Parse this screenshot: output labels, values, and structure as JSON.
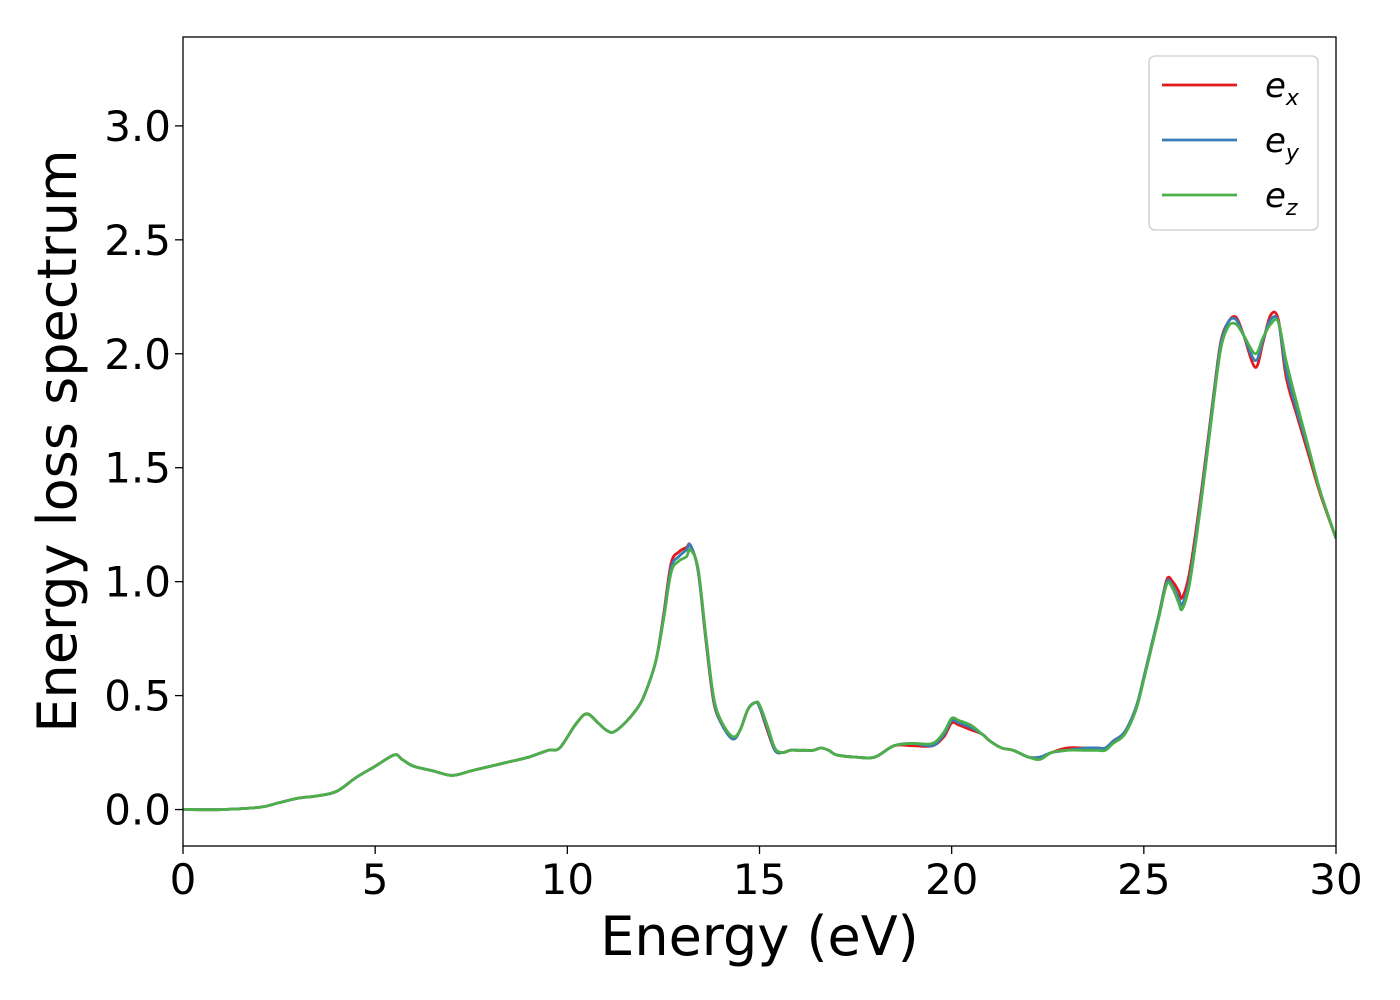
{
  "chart_data": {
    "type": "line",
    "xlabel": "Energy (eV)",
    "ylabel": "Energy loss spectrum",
    "xlim": [
      0,
      30
    ],
    "ylim": [
      -0.16,
      3.39
    ],
    "xticks": [
      0,
      5,
      10,
      15,
      20,
      25,
      30
    ],
    "xtick_labels": [
      "0",
      "5",
      "10",
      "15",
      "20",
      "25",
      "30"
    ],
    "yticks": [
      0.0,
      0.5,
      1.0,
      1.5,
      2.0,
      2.5,
      3.0
    ],
    "ytick_labels": [
      "0.0",
      "0.5",
      "1.0",
      "1.5",
      "2.0",
      "2.5",
      "3.0"
    ],
    "grid": false,
    "legend_position": "top-right",
    "x": [
      0,
      1,
      2,
      2.5,
      3,
      3.5,
      4,
      4.5,
      5,
      5.5,
      5.7,
      6,
      6.5,
      7,
      7.5,
      8,
      8.5,
      9,
      9.5,
      9.8,
      10.2,
      10.5,
      10.8,
      11,
      11.2,
      11.5,
      11.8,
      12,
      12.3,
      12.5,
      12.7,
      12.9,
      13.1,
      13.2,
      13.4,
      13.6,
      13.8,
      14,
      14.3,
      14.5,
      14.7,
      14.9,
      15,
      15.2,
      15.4,
      15.6,
      15.8,
      16,
      16.2,
      16.4,
      16.6,
      16.8,
      17,
      17.5,
      18,
      18.5,
      19,
      19.5,
      19.8,
      20,
      20.2,
      20.5,
      20.8,
      21,
      21.3,
      21.6,
      22,
      22.3,
      22.6,
      23,
      23.5,
      23.8,
      24,
      24.2,
      24.5,
      24.8,
      25,
      25.2,
      25.4,
      25.6,
      25.75,
      25.9,
      26,
      26.2,
      26.5,
      26.8,
      27,
      27.2,
      27.4,
      27.6,
      27.9,
      28.1,
      28.3,
      28.5,
      28.7,
      29,
      29.3,
      29.6,
      30
    ],
    "series": [
      {
        "name_main": "e",
        "name_sub": "x",
        "color": "#e31a1c",
        "values": [
          0,
          0,
          0.01,
          0.03,
          0.05,
          0.06,
          0.08,
          0.14,
          0.19,
          0.24,
          0.22,
          0.19,
          0.17,
          0.15,
          0.17,
          0.19,
          0.21,
          0.23,
          0.26,
          0.27,
          0.37,
          0.42,
          0.38,
          0.35,
          0.34,
          0.38,
          0.44,
          0.5,
          0.65,
          0.85,
          1.08,
          1.13,
          1.15,
          1.16,
          1.05,
          0.75,
          0.48,
          0.38,
          0.31,
          0.35,
          0.44,
          0.47,
          0.45,
          0.35,
          0.26,
          0.25,
          0.26,
          0.26,
          0.26,
          0.26,
          0.27,
          0.26,
          0.24,
          0.23,
          0.23,
          0.28,
          0.28,
          0.28,
          0.32,
          0.38,
          0.37,
          0.35,
          0.33,
          0.3,
          0.27,
          0.26,
          0.23,
          0.23,
          0.25,
          0.27,
          0.27,
          0.27,
          0.27,
          0.3,
          0.34,
          0.45,
          0.58,
          0.72,
          0.86,
          1.01,
          1.0,
          0.96,
          0.93,
          1.05,
          1.4,
          1.8,
          2.05,
          2.14,
          2.16,
          2.08,
          1.94,
          2.05,
          2.17,
          2.15,
          1.9,
          1.72,
          1.55,
          1.38,
          1.19
        ]
      },
      {
        "name_main": "e",
        "name_sub": "y",
        "color": "#377eb8",
        "values": [
          0,
          0,
          0.01,
          0.03,
          0.05,
          0.06,
          0.08,
          0.14,
          0.19,
          0.24,
          0.22,
          0.19,
          0.17,
          0.15,
          0.17,
          0.19,
          0.21,
          0.23,
          0.26,
          0.27,
          0.37,
          0.42,
          0.38,
          0.35,
          0.34,
          0.38,
          0.44,
          0.5,
          0.65,
          0.84,
          1.06,
          1.11,
          1.14,
          1.16,
          1.05,
          0.76,
          0.49,
          0.38,
          0.31,
          0.35,
          0.44,
          0.47,
          0.45,
          0.36,
          0.26,
          0.25,
          0.26,
          0.26,
          0.26,
          0.26,
          0.27,
          0.26,
          0.24,
          0.23,
          0.23,
          0.28,
          0.29,
          0.28,
          0.33,
          0.39,
          0.38,
          0.36,
          0.33,
          0.3,
          0.27,
          0.26,
          0.23,
          0.23,
          0.25,
          0.26,
          0.27,
          0.27,
          0.27,
          0.3,
          0.34,
          0.45,
          0.58,
          0.72,
          0.86,
          1.0,
          0.98,
          0.93,
          0.9,
          1.02,
          1.38,
          1.79,
          2.04,
          2.14,
          2.15,
          2.08,
          1.97,
          2.06,
          2.15,
          2.14,
          1.93,
          1.74,
          1.57,
          1.39,
          1.19
        ]
      },
      {
        "name_main": "e",
        "name_sub": "z",
        "color": "#4daf4a",
        "values": [
          0,
          0,
          0.01,
          0.03,
          0.05,
          0.06,
          0.08,
          0.14,
          0.19,
          0.24,
          0.22,
          0.19,
          0.17,
          0.15,
          0.17,
          0.19,
          0.21,
          0.23,
          0.26,
          0.27,
          0.37,
          0.42,
          0.38,
          0.35,
          0.34,
          0.38,
          0.44,
          0.5,
          0.65,
          0.83,
          1.04,
          1.09,
          1.11,
          1.14,
          1.06,
          0.77,
          0.5,
          0.39,
          0.32,
          0.35,
          0.44,
          0.47,
          0.46,
          0.37,
          0.27,
          0.25,
          0.26,
          0.26,
          0.26,
          0.26,
          0.27,
          0.26,
          0.24,
          0.23,
          0.23,
          0.28,
          0.29,
          0.29,
          0.34,
          0.4,
          0.39,
          0.37,
          0.33,
          0.3,
          0.27,
          0.26,
          0.23,
          0.22,
          0.25,
          0.26,
          0.26,
          0.26,
          0.26,
          0.29,
          0.33,
          0.44,
          0.57,
          0.71,
          0.85,
          0.99,
          0.97,
          0.91,
          0.88,
          1.0,
          1.36,
          1.77,
          2.02,
          2.12,
          2.13,
          2.08,
          2.0,
          2.07,
          2.13,
          2.14,
          1.97,
          1.77,
          1.58,
          1.39,
          1.19
        ]
      }
    ]
  }
}
